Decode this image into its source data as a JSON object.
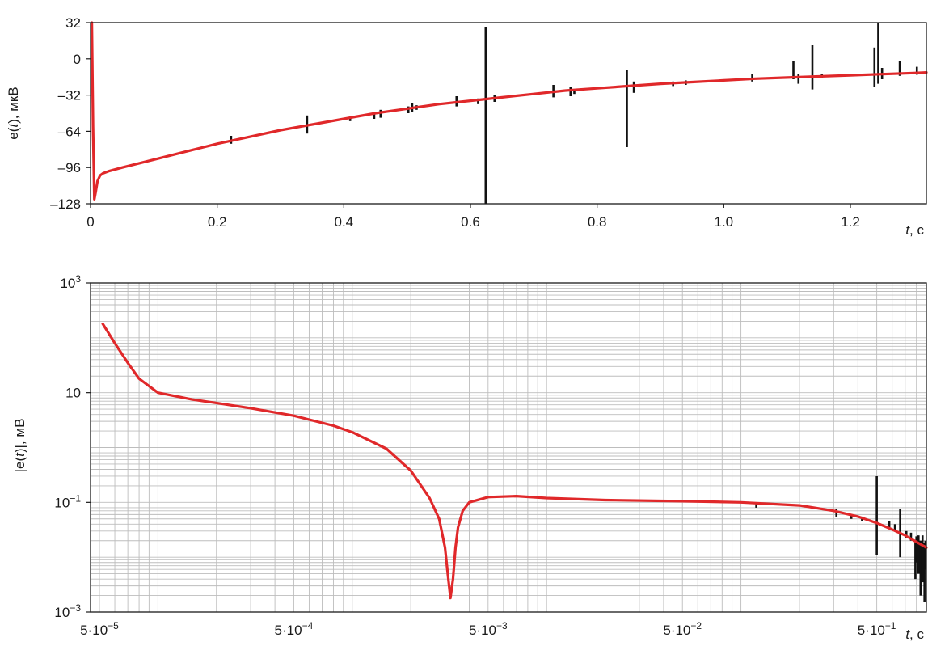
{
  "chart_data": [
    {
      "type": "line",
      "ylabel": {
        "pre": "e(",
        "italic": "t",
        "post": "), мкВ"
      },
      "xlabel": {
        "italic": "t",
        "post": ", с"
      },
      "xlim": [
        0,
        1.32
      ],
      "ylim": [
        -128,
        32
      ],
      "x_ticks": [
        {
          "v": 0,
          "label": "0"
        },
        {
          "v": 0.2,
          "label": "0.2"
        },
        {
          "v": 0.4,
          "label": "0.4"
        },
        {
          "v": 0.6,
          "label": "0.6"
        },
        {
          "v": 0.8,
          "label": "0.8"
        },
        {
          "v": 1.0,
          "label": "1.0"
        },
        {
          "v": 1.2,
          "label": "1.2"
        }
      ],
      "y_ticks": [
        {
          "v": 32,
          "label": "32"
        },
        {
          "v": 0,
          "label": "0"
        },
        {
          "v": -32,
          "label": "–32"
        },
        {
          "v": -64,
          "label": "–64"
        },
        {
          "v": -96,
          "label": "–96"
        },
        {
          "v": -128,
          "label": "–128"
        }
      ],
      "grid": false,
      "series": [
        {
          "x": [
            0.002,
            0.004,
            0.006,
            0.008,
            0.011,
            0.015,
            0.02,
            0.03,
            0.05,
            0.1,
            0.15,
            0.2,
            0.25,
            0.3,
            0.35,
            0.4,
            0.45,
            0.5,
            0.55,
            0.6,
            0.65,
            0.7,
            0.75,
            0.8,
            0.85,
            0.9,
            0.95,
            1.0,
            1.05,
            1.1,
            1.15,
            1.2,
            1.25,
            1.3,
            1.32
          ],
          "y": [
            32,
            -60,
            -124,
            -118,
            -108,
            -103,
            -101,
            -99,
            -96,
            -89,
            -82,
            -75,
            -69,
            -63,
            -58,
            -53,
            -48,
            -44,
            -40,
            -37,
            -34,
            -31,
            -28,
            -26,
            -24,
            -22,
            -20.5,
            -19,
            -17.5,
            -16.5,
            -15.5,
            -14.5,
            -13.5,
            -12.5,
            -12
          ]
        }
      ],
      "spikes": [
        {
          "x": 0.222,
          "y1": -75,
          "y2": -68
        },
        {
          "x": 0.342,
          "y1": -66,
          "y2": -50
        },
        {
          "x": 0.41,
          "y1": -55,
          "y2": -51
        },
        {
          "x": 0.448,
          "y1": -53,
          "y2": -48
        },
        {
          "x": 0.458,
          "y1": -52,
          "y2": -45
        },
        {
          "x": 0.502,
          "y1": -48,
          "y2": -42
        },
        {
          "x": 0.508,
          "y1": -47,
          "y2": -39
        },
        {
          "x": 0.515,
          "y1": -45,
          "y2": -41
        },
        {
          "x": 0.578,
          "y1": -42,
          "y2": -33
        },
        {
          "x": 0.612,
          "y1": -40,
          "y2": -35
        },
        {
          "x": 0.624,
          "y1": -128,
          "y2": 28
        },
        {
          "x": 0.638,
          "y1": -38,
          "y2": -32
        },
        {
          "x": 0.731,
          "y1": -34,
          "y2": -23
        },
        {
          "x": 0.758,
          "y1": -33,
          "y2": -25
        },
        {
          "x": 0.764,
          "y1": -31,
          "y2": -27
        },
        {
          "x": 0.847,
          "y1": -78,
          "y2": -10
        },
        {
          "x": 0.858,
          "y1": -30,
          "y2": -20
        },
        {
          "x": 0.92,
          "y1": -24,
          "y2": -20
        },
        {
          "x": 0.94,
          "y1": -23,
          "y2": -19
        },
        {
          "x": 1.045,
          "y1": -20,
          "y2": -13
        },
        {
          "x": 1.11,
          "y1": -18,
          "y2": -2
        },
        {
          "x": 1.118,
          "y1": -22,
          "y2": -13
        },
        {
          "x": 1.14,
          "y1": -27,
          "y2": 12
        },
        {
          "x": 1.155,
          "y1": -17,
          "y2": -13
        },
        {
          "x": 1.238,
          "y1": -25,
          "y2": 10
        },
        {
          "x": 1.244,
          "y1": -22,
          "y2": 32
        },
        {
          "x": 1.25,
          "y1": -18,
          "y2": -8
        },
        {
          "x": 1.278,
          "y1": -15,
          "y2": -2
        },
        {
          "x": 1.305,
          "y1": -14,
          "y2": -7
        }
      ]
    },
    {
      "type": "line",
      "scale": "log-log",
      "ylabel": {
        "pre": "|e(",
        "italic": "t",
        "post": ")|, мВ"
      },
      "xlabel": {
        "italic": "t",
        "post": ", с"
      },
      "xlim": [
        4.5e-05,
        0.9
      ],
      "ylim": [
        0.001,
        1000
      ],
      "grid": true,
      "x_ticks": [
        {
          "v": 5e-05,
          "base": "5·10",
          "exp": "−5"
        },
        {
          "v": 0.0005,
          "base": "5·10",
          "exp": "−4"
        },
        {
          "v": 0.005,
          "base": "5·10",
          "exp": "−3"
        },
        {
          "v": 0.05,
          "base": "5·10",
          "exp": "−2"
        },
        {
          "v": 0.5,
          "base": "5·10",
          "exp": "−1"
        }
      ],
      "y_ticks": [
        {
          "v": 1000,
          "base": "10",
          "exp": "3"
        },
        {
          "v": 10,
          "base": "10",
          "exp": ""
        },
        {
          "v": 0.1,
          "base": "10",
          "exp": "−1"
        },
        {
          "v": 0.001,
          "base": "10",
          "exp": "−3"
        }
      ],
      "series": [
        {
          "x": [
            5.2e-05,
            6e-05,
            7e-05,
            8e-05,
            0.0001,
            0.00015,
            0.0002,
            0.0003,
            0.0005,
            0.0008,
            0.001,
            0.0015,
            0.002,
            0.0025,
            0.0028,
            0.003,
            0.0031,
            0.0032,
            0.0033,
            0.0034,
            0.0035,
            0.0037,
            0.004,
            0.005,
            0.007,
            0.01,
            0.02,
            0.05,
            0.1,
            0.2,
            0.3,
            0.4,
            0.5,
            0.6,
            0.7,
            0.8,
            0.9
          ],
          "y": [
            180,
            80,
            35,
            18,
            10,
            7.5,
            6.5,
            5.2,
            3.8,
            2.5,
            1.9,
            0.95,
            0.38,
            0.12,
            0.05,
            0.015,
            0.005,
            0.0018,
            0.004,
            0.015,
            0.035,
            0.07,
            0.1,
            0.125,
            0.13,
            0.12,
            0.11,
            0.105,
            0.1,
            0.088,
            0.07,
            0.055,
            0.042,
            0.032,
            0.025,
            0.019,
            0.015
          ]
        }
      ],
      "spikes": [
        {
          "x": 0.12,
          "y1": 0.08,
          "y2": 0.095
        },
        {
          "x": 0.31,
          "y1": 0.055,
          "y2": 0.075
        },
        {
          "x": 0.37,
          "y1": 0.05,
          "y2": 0.06
        },
        {
          "x": 0.42,
          "y1": 0.045,
          "y2": 0.055
        },
        {
          "x": 0.5,
          "y1": 0.011,
          "y2": 0.3
        },
        {
          "x": 0.58,
          "y1": 0.033,
          "y2": 0.045
        },
        {
          "x": 0.62,
          "y1": 0.031,
          "y2": 0.04
        },
        {
          "x": 0.66,
          "y1": 0.01,
          "y2": 0.075
        },
        {
          "x": 0.71,
          "y1": 0.022,
          "y2": 0.03
        },
        {
          "x": 0.75,
          "y1": 0.02,
          "y2": 0.028
        },
        {
          "x": 0.79,
          "y1": 0.004,
          "y2": 0.02
        },
        {
          "x": 0.8,
          "y1": 0.008,
          "y2": 0.024
        },
        {
          "x": 0.82,
          "y1": 0.005,
          "y2": 0.025
        },
        {
          "x": 0.84,
          "y1": 0.002,
          "y2": 0.02
        },
        {
          "x": 0.86,
          "y1": 0.0035,
          "y2": 0.025
        },
        {
          "x": 0.88,
          "y1": 0.0015,
          "y2": 0.018
        },
        {
          "x": 0.89,
          "y1": 0.006,
          "y2": 0.02
        }
      ]
    }
  ]
}
